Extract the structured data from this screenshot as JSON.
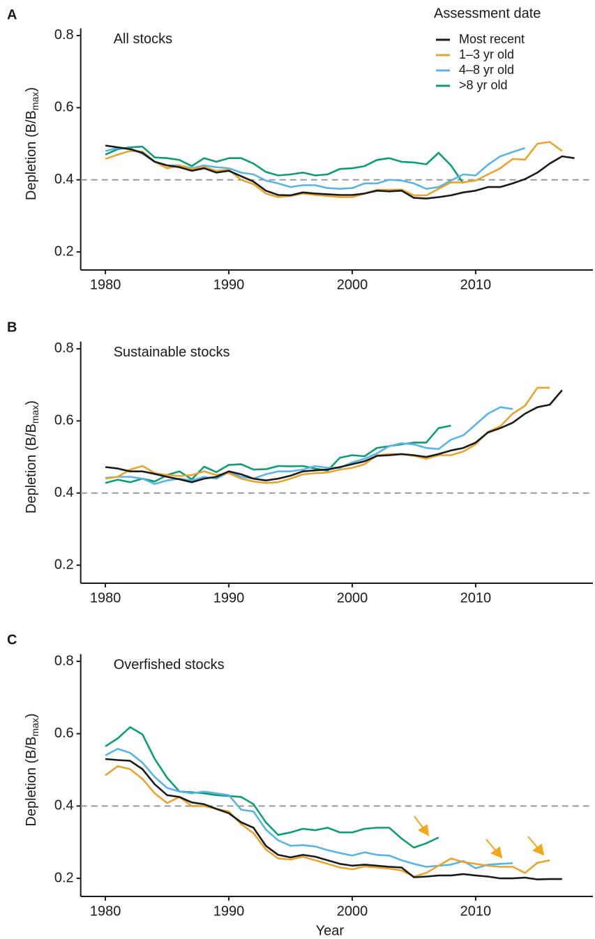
{
  "chart_data": [
    {
      "type": "line",
      "panel": "A",
      "title": "All stocks",
      "ylabel": [
        "Depletion (B/B",
        "max",
        ")"
      ],
      "legend_title": "Assessment date",
      "legend": "top-right",
      "xlim": [
        1978,
        2019.5
      ],
      "ylim": [
        0.15,
        0.82
      ],
      "xticks": [
        1980,
        1990,
        2000,
        2010
      ],
      "yticks": [
        0.2,
        0.4,
        0.6,
        0.8
      ],
      "hline": 0.4,
      "x": [
        1980,
        1981,
        1982,
        1983,
        1984,
        1985,
        1986,
        1987,
        1988,
        1989,
        1990,
        1991,
        1992,
        1993,
        1994,
        1995,
        1996,
        1997,
        1998,
        1999,
        2000,
        2001,
        2002,
        2003,
        2004,
        2005,
        2006,
        2007,
        2008,
        2009,
        2010,
        2011,
        2012,
        2013,
        2014,
        2015,
        2016,
        2017,
        2018
      ],
      "series": [
        {
          "name": "Most recent",
          "color": "#1a1a1a",
          "values": [
            0.495,
            0.49,
            0.485,
            0.475,
            0.45,
            0.44,
            0.435,
            0.425,
            0.432,
            0.42,
            0.425,
            0.41,
            0.395,
            0.37,
            0.358,
            0.357,
            0.365,
            0.362,
            0.36,
            0.358,
            0.358,
            0.362,
            0.37,
            0.368,
            0.37,
            0.35,
            0.348,
            0.352,
            0.357,
            0.365,
            0.37,
            0.38,
            0.38,
            0.39,
            0.402,
            0.42,
            0.445,
            0.465,
            0.46
          ]
        },
        {
          "name": "1–3 yr old",
          "color": "#e6a532",
          "values": [
            0.458,
            0.47,
            0.48,
            0.478,
            0.45,
            0.432,
            0.44,
            0.43,
            0.436,
            0.425,
            0.428,
            0.4,
            0.388,
            0.362,
            0.352,
            0.355,
            0.362,
            0.358,
            0.355,
            0.352,
            0.352,
            0.362,
            0.372,
            0.372,
            0.373,
            0.357,
            0.357,
            0.375,
            0.393,
            0.393,
            0.398,
            0.415,
            0.432,
            0.458,
            0.456,
            0.5,
            0.505,
            0.48,
            null
          ]
        },
        {
          "name": "4–8 yr old",
          "color": "#5ab4e5",
          "values": [
            0.48,
            0.488,
            0.487,
            0.472,
            0.45,
            0.44,
            0.44,
            0.432,
            0.44,
            0.435,
            0.432,
            0.42,
            0.415,
            0.398,
            0.39,
            0.38,
            0.385,
            0.385,
            0.377,
            0.375,
            0.377,
            0.39,
            0.39,
            0.4,
            0.398,
            0.39,
            0.375,
            0.38,
            0.398,
            0.415,
            0.412,
            0.442,
            0.465,
            0.477,
            0.488,
            null,
            null,
            null,
            null
          ]
        },
        {
          "name": ">8 yr old",
          "color": "#0f9b74",
          "values": [
            0.47,
            0.485,
            0.49,
            0.492,
            0.462,
            0.46,
            0.455,
            0.438,
            0.46,
            0.45,
            0.46,
            0.46,
            0.445,
            0.422,
            0.412,
            0.415,
            0.42,
            0.412,
            0.415,
            0.43,
            0.432,
            0.438,
            0.455,
            0.46,
            0.45,
            0.448,
            0.443,
            0.475,
            0.44,
            0.39,
            null,
            null,
            null,
            null,
            null,
            null,
            null,
            null,
            null
          ]
        }
      ]
    },
    {
      "type": "line",
      "panel": "B",
      "title": "Sustainable stocks",
      "ylabel": [
        "Depletion (B/B",
        "max",
        ")"
      ],
      "xlim": [
        1978,
        2019.5
      ],
      "ylim": [
        0.15,
        0.82
      ],
      "xticks": [
        1980,
        1990,
        2000,
        2010
      ],
      "yticks": [
        0.2,
        0.4,
        0.6,
        0.8
      ],
      "hline": 0.4,
      "x": [
        1980,
        1981,
        1982,
        1983,
        1984,
        1985,
        1986,
        1987,
        1988,
        1989,
        1990,
        1991,
        1992,
        1993,
        1994,
        1995,
        1996,
        1997,
        1998,
        1999,
        2000,
        2001,
        2002,
        2003,
        2004,
        2005,
        2006,
        2007,
        2008,
        2009,
        2010,
        2011,
        2012,
        2013,
        2014,
        2015,
        2016,
        2017
      ],
      "series": [
        {
          "color": "#1a1a1a",
          "values": [
            0.472,
            0.468,
            0.46,
            0.46,
            0.453,
            0.445,
            0.438,
            0.43,
            0.44,
            0.445,
            0.46,
            0.452,
            0.44,
            0.435,
            0.44,
            0.448,
            0.46,
            0.463,
            0.465,
            0.472,
            0.48,
            0.488,
            0.503,
            0.505,
            0.508,
            0.505,
            0.5,
            0.508,
            0.518,
            0.525,
            0.54,
            0.568,
            0.58,
            0.595,
            0.62,
            0.638,
            0.645,
            0.685
          ]
        },
        {
          "color": "#e6a532",
          "values": [
            0.44,
            0.445,
            0.465,
            0.475,
            0.455,
            0.45,
            0.447,
            0.45,
            0.46,
            0.45,
            0.455,
            0.44,
            0.432,
            0.428,
            0.43,
            0.44,
            0.452,
            0.455,
            0.457,
            0.465,
            0.47,
            0.48,
            0.505,
            0.508,
            0.508,
            0.503,
            0.495,
            0.505,
            0.505,
            0.515,
            0.535,
            0.57,
            0.585,
            0.62,
            0.642,
            0.692,
            0.692,
            null
          ]
        },
        {
          "color": "#5ab4e5",
          "values": [
            0.442,
            0.445,
            0.445,
            0.44,
            0.425,
            0.435,
            0.44,
            0.435,
            0.445,
            0.44,
            0.458,
            0.445,
            0.44,
            0.452,
            0.46,
            0.46,
            0.465,
            0.475,
            0.47,
            0.47,
            0.485,
            0.495,
            0.51,
            0.53,
            0.538,
            0.535,
            0.525,
            0.522,
            0.548,
            0.56,
            0.59,
            0.62,
            0.638,
            0.633,
            null,
            null,
            null,
            null
          ]
        },
        {
          "color": "#0f9b74",
          "values": [
            0.428,
            0.437,
            0.43,
            0.44,
            0.432,
            0.45,
            0.46,
            0.438,
            0.473,
            0.458,
            0.478,
            0.48,
            0.465,
            0.466,
            0.475,
            0.474,
            0.475,
            0.468,
            0.462,
            0.498,
            0.505,
            0.502,
            0.525,
            0.53,
            0.535,
            0.54,
            0.54,
            0.58,
            0.587,
            null,
            null,
            null,
            null,
            null,
            null,
            null,
            null,
            null
          ]
        }
      ]
    },
    {
      "type": "line",
      "panel": "C",
      "title": "Overfished stocks",
      "ylabel": [
        "Depletion (B/B",
        "max",
        ")"
      ],
      "xlabel": "Year",
      "xlim": [
        1978,
        2019.5
      ],
      "ylim": [
        0.15,
        0.82
      ],
      "xticks": [
        1980,
        1990,
        2000,
        2010
      ],
      "yticks": [
        0.2,
        0.4,
        0.6,
        0.8
      ],
      "hline": 0.4,
      "x": [
        1980,
        1981,
        1982,
        1983,
        1984,
        1985,
        1986,
        1987,
        1988,
        1989,
        1990,
        1991,
        1992,
        1993,
        1994,
        1995,
        1996,
        1997,
        1998,
        1999,
        2000,
        2001,
        2002,
        2003,
        2004,
        2005,
        2006,
        2007,
        2008,
        2009,
        2010,
        2011,
        2012,
        2013,
        2014,
        2015,
        2016,
        2017
      ],
      "series": [
        {
          "color": "#1a1a1a",
          "values": [
            0.53,
            0.527,
            0.525,
            0.502,
            0.46,
            0.43,
            0.425,
            0.41,
            0.405,
            0.392,
            0.38,
            0.355,
            0.34,
            0.29,
            0.265,
            0.258,
            0.265,
            0.26,
            0.25,
            0.24,
            0.235,
            0.238,
            0.235,
            0.232,
            0.23,
            0.203,
            0.205,
            0.208,
            0.208,
            0.212,
            0.208,
            0.205,
            0.2,
            0.2,
            0.202,
            0.197,
            0.198,
            0.198
          ]
        },
        {
          "color": "#e6a532",
          "values": [
            0.485,
            0.51,
            0.502,
            0.475,
            0.435,
            0.408,
            0.425,
            0.4,
            0.4,
            0.392,
            0.385,
            0.35,
            0.325,
            0.28,
            0.255,
            0.252,
            0.26,
            0.25,
            0.24,
            0.23,
            0.225,
            0.233,
            0.23,
            0.227,
            0.222,
            0.205,
            0.215,
            0.235,
            0.255,
            0.245,
            0.24,
            0.235,
            0.232,
            0.232,
            0.215,
            0.243,
            0.25,
            null
          ]
        },
        {
          "color": "#5ab4e5",
          "values": [
            0.54,
            0.558,
            0.547,
            0.52,
            0.48,
            0.45,
            0.44,
            0.435,
            0.44,
            0.435,
            0.43,
            0.39,
            0.385,
            0.335,
            0.305,
            0.29,
            0.292,
            0.288,
            0.278,
            0.27,
            0.263,
            0.272,
            0.265,
            0.263,
            0.25,
            0.24,
            0.232,
            0.235,
            0.238,
            0.248,
            0.228,
            0.238,
            0.24,
            0.242,
            null,
            null,
            null,
            null
          ]
        },
        {
          "color": "#0f9b74",
          "values": [
            0.565,
            0.587,
            0.618,
            0.598,
            0.53,
            0.478,
            0.44,
            0.438,
            0.435,
            0.43,
            0.428,
            0.425,
            0.405,
            0.355,
            0.32,
            0.327,
            0.337,
            0.333,
            0.34,
            0.327,
            0.327,
            0.337,
            0.34,
            0.34,
            0.31,
            0.285,
            0.297,
            0.313,
            null,
            null,
            null,
            null,
            null,
            null,
            null,
            null,
            null,
            null
          ]
        }
      ]
    }
  ]
}
